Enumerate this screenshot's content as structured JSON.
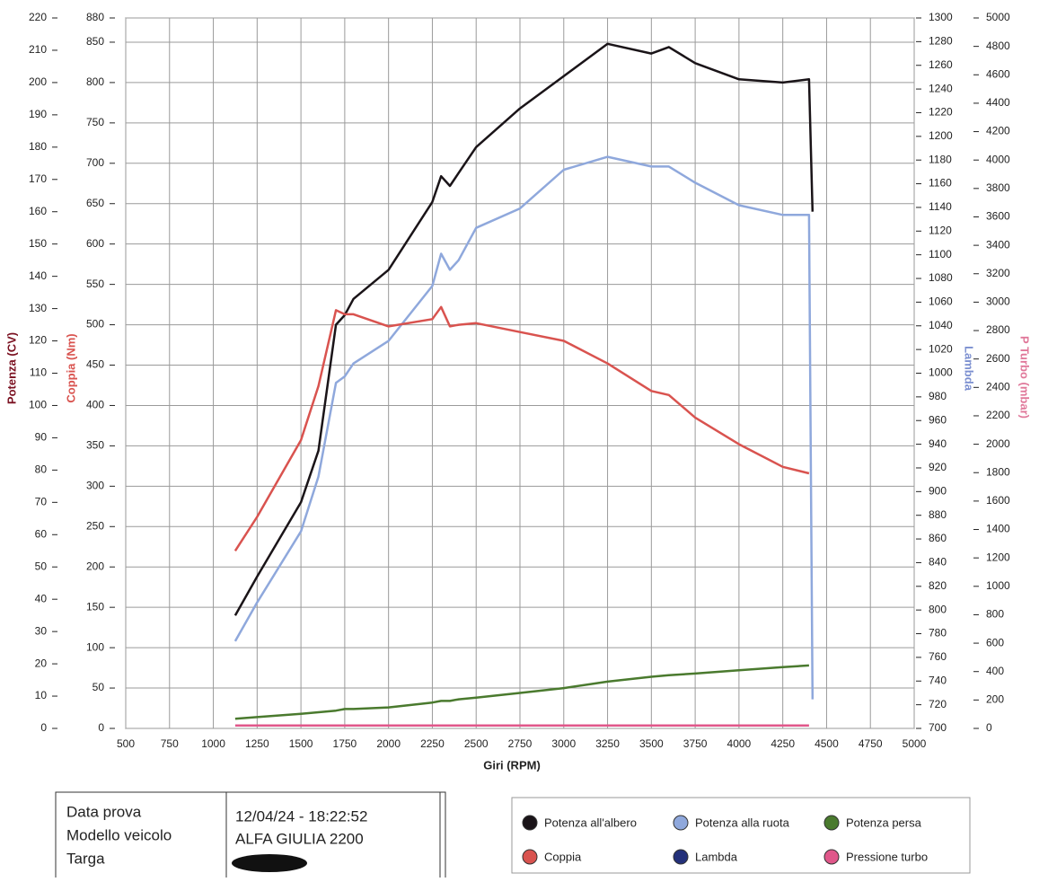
{
  "chart_data": {
    "type": "line",
    "x_label": "Giri (RPM)",
    "xlim": [
      500,
      5000
    ],
    "xticks": [
      500,
      750,
      1000,
      1250,
      1500,
      1750,
      2000,
      2250,
      2500,
      2750,
      3000,
      3250,
      3500,
      3750,
      4000,
      4250,
      4500,
      4750,
      5000
    ],
    "x": [
      1125,
      1250,
      1500,
      1600,
      1700,
      1750,
      1800,
      2000,
      2250,
      2300,
      2350,
      2400,
      2500,
      2750,
      3000,
      3250,
      3500,
      3600,
      3750,
      4000,
      4250,
      4400,
      4420
    ],
    "axes": {
      "potenza": {
        "label": "Potenza (CV)",
        "color": "#7a1020",
        "lim": [
          0,
          220
        ],
        "ticks": [
          0,
          10,
          20,
          30,
          40,
          50,
          60,
          70,
          80,
          90,
          100,
          110,
          120,
          130,
          140,
          150,
          160,
          170,
          180,
          190,
          200,
          210,
          220
        ]
      },
      "coppia": {
        "label": "Coppia (Nm)",
        "color": "#d9534f",
        "lim": [
          0,
          880
        ],
        "ticks": [
          0,
          50,
          100,
          150,
          200,
          250,
          300,
          350,
          400,
          450,
          500,
          550,
          600,
          650,
          700,
          750,
          800,
          850,
          880
        ]
      },
      "lambda": {
        "label": "Lambda",
        "color": "#7b8fd0",
        "lim": [
          700,
          1300
        ],
        "ticks": [
          700,
          720,
          740,
          760,
          780,
          800,
          820,
          840,
          860,
          880,
          900,
          920,
          940,
          960,
          980,
          1000,
          1020,
          1040,
          1060,
          1080,
          1100,
          1120,
          1140,
          1160,
          1180,
          1200,
          1220,
          1240,
          1260,
          1280,
          1300
        ]
      },
      "turbo": {
        "label": "P Turbo (mbar)",
        "color": "#e0789a",
        "lim": [
          0,
          5000
        ],
        "ticks": [
          0,
          200,
          400,
          600,
          800,
          1000,
          1200,
          1400,
          1600,
          1800,
          2000,
          2200,
          2400,
          2600,
          2800,
          3000,
          3200,
          3400,
          3600,
          3800,
          4000,
          4200,
          4400,
          4600,
          4800,
          5000
        ]
      }
    },
    "series": [
      {
        "name": "Potenza all'albero",
        "color": "#1a1418",
        "axis": "potenza",
        "values": [
          35,
          47,
          70,
          86,
          125,
          128,
          133,
          142,
          163,
          171,
          168,
          172,
          180,
          192,
          202,
          212,
          209,
          211,
          206,
          201,
          200,
          201,
          160
        ]
      },
      {
        "name": "Potenza alla ruota",
        "color": "#8fa8dc",
        "axis": "potenza",
        "values": [
          27,
          39,
          61,
          78,
          107,
          109,
          113,
          120,
          137,
          147,
          142,
          145,
          155,
          161,
          173,
          177,
          174,
          174,
          169,
          162,
          159,
          159,
          9
        ]
      },
      {
        "name": "Potenza persa",
        "color": "#4a7a2e",
        "axis": "potenza",
        "values": [
          3,
          3.5,
          4.5,
          5,
          5.5,
          6,
          6,
          6.5,
          8,
          8.5,
          8.5,
          9,
          9.5,
          11,
          12.5,
          14.5,
          16,
          16.5,
          17,
          18,
          19,
          19.5,
          null
        ]
      },
      {
        "name": "Coppia",
        "color": "#d9534f",
        "axis": "coppia",
        "values": [
          220,
          262,
          357,
          424,
          518,
          513,
          513,
          498,
          507,
          522,
          498,
          500,
          502,
          491,
          480,
          452,
          418,
          413,
          385,
          352,
          324,
          316,
          null
        ]
      },
      {
        "name": "Lambda",
        "color": "#23307a",
        "axis": "lambda",
        "values": [
          null,
          null,
          null,
          null,
          null,
          null,
          null,
          null,
          null,
          null,
          null,
          null,
          null,
          null,
          null,
          null,
          null,
          null,
          null,
          null,
          null,
          null,
          null
        ]
      },
      {
        "name": "Pressione turbo",
        "color": "#e0578a",
        "axis": "turbo",
        "values": [
          20,
          20,
          20,
          20,
          20,
          20,
          20,
          20,
          20,
          20,
          20,
          20,
          20,
          20,
          20,
          20,
          20,
          20,
          20,
          20,
          20,
          20,
          null
        ]
      }
    ]
  },
  "info": {
    "rows": [
      [
        "Data prova",
        "12/04/24 - 18:22:52"
      ],
      [
        "Modello veicolo",
        "ALFA GIULIA 2200"
      ],
      [
        "Targa"
      ]
    ]
  }
}
